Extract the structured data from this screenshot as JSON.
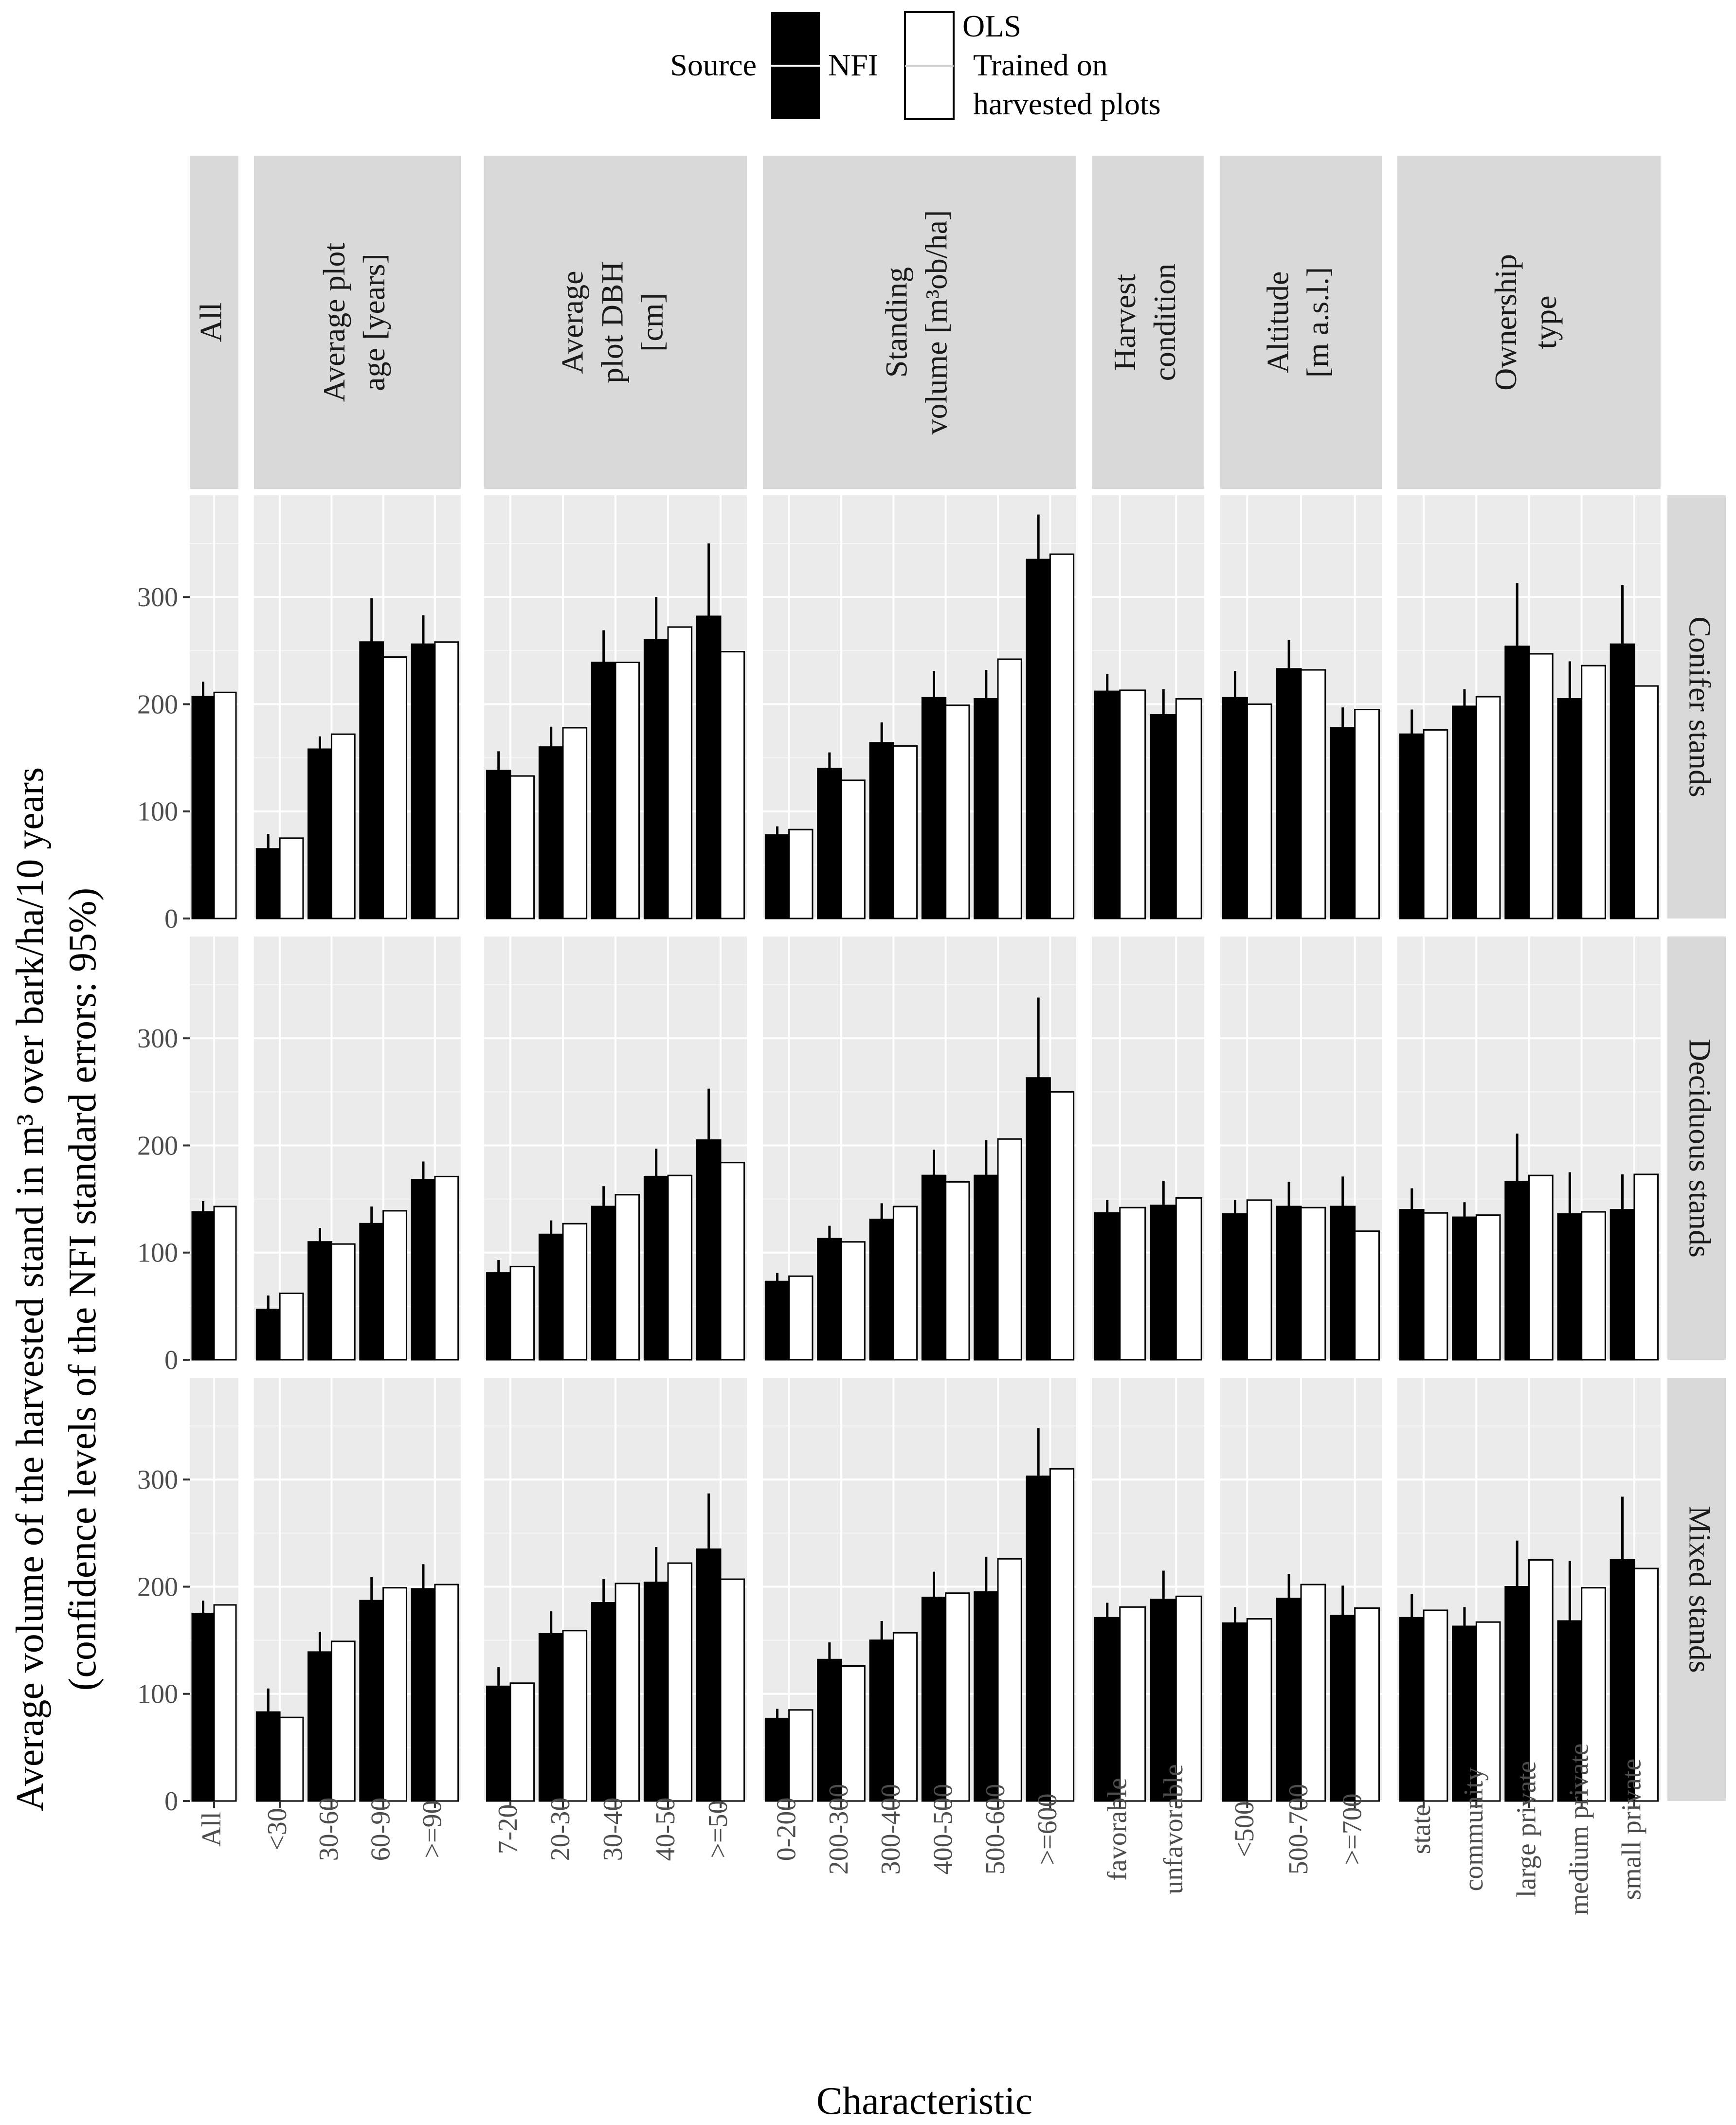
{
  "legend": {
    "title": "Source",
    "items": [
      {
        "key": "nfi",
        "label": "NFI"
      },
      {
        "key": "ols",
        "label_lines": [
          "OLS",
          "Trained on",
          "harvested plots"
        ]
      }
    ]
  },
  "chart_data": {
    "type": "bar",
    "facet_rows": [
      "Conifer stands",
      "Deciduous stands",
      "Mixed stands"
    ],
    "ylabel_lines": [
      "Average volume of the harvested stand in m³ over bark/ha/10 years",
      "(confidence levels of the NFI standard errors: 95%)"
    ],
    "xlabel": "Characteristic",
    "ylim": [
      0,
      395
    ],
    "yticks": [
      0,
      100,
      200,
      300
    ],
    "groups": [
      {
        "strip": [
          "All"
        ],
        "categories": [
          "All"
        ]
      },
      {
        "strip": [
          "Average plot",
          "age [years]"
        ],
        "categories": [
          "<30",
          "30-60",
          "60-90",
          ">=90"
        ]
      },
      {
        "strip": [
          "Average",
          "plot DBH",
          "[cm]"
        ],
        "categories": [
          "7-20",
          "20-30",
          "30-40",
          "40-50",
          ">=50"
        ]
      },
      {
        "strip": [
          "Standing",
          "volume [m³ob/ha]"
        ],
        "categories": [
          "0-200",
          "200-300",
          "300-400",
          "400-500",
          "500-600",
          ">=600"
        ]
      },
      {
        "strip": [
          "Harvest",
          "condition"
        ],
        "categories": [
          "favorable",
          "unfavorable"
        ]
      },
      {
        "strip": [
          "Altitude",
          "[m a.s.l.]"
        ],
        "categories": [
          "<500",
          "500-700",
          ">=700"
        ]
      },
      {
        "strip": [
          "Ownership",
          "type"
        ],
        "categories": [
          "state",
          "community",
          "large private",
          "medium private",
          "small private"
        ]
      }
    ],
    "series": [
      {
        "name": "NFI",
        "values": [
          [
            [
              207
            ],
            [
              65,
              158,
              258,
              256
            ],
            [
              138,
              160,
              239,
              260,
              282
            ],
            [
              78,
              140,
              164,
              206,
              205,
              335
            ],
            [
              212,
              190
            ],
            [
              206,
              233,
              178
            ],
            [
              172,
              198,
              254,
              205,
              256
            ]
          ],
          [
            [
              138
            ],
            [
              47,
              110,
              127,
              168
            ],
            [
              81,
              117,
              143,
              171,
              205
            ],
            [
              73,
              113,
              131,
              172,
              172,
              263
            ],
            [
              137,
              144
            ],
            [
              136,
              143,
              143
            ],
            [
              140,
              133,
              166,
              136,
              140
            ]
          ],
          [
            [
              175
            ],
            [
              83,
              139,
              187,
              198
            ],
            [
              107,
              156,
              185,
              204,
              235
            ],
            [
              77,
              132,
              150,
              190,
              195,
              303
            ],
            [
              171,
              188
            ],
            [
              166,
              189,
              173
            ],
            [
              171,
              163,
              200,
              168,
              225
            ]
          ]
        ]
      },
      {
        "name": "OLS Trained on harvested plots",
        "values": [
          [
            [
              211
            ],
            [
              75,
              172,
              244,
              258
            ],
            [
              133,
              178,
              239,
              272,
              249
            ],
            [
              83,
              129,
              161,
              199,
              242,
              340
            ],
            [
              213,
              205
            ],
            [
              200,
              232,
              195
            ],
            [
              176,
              207,
              247,
              236,
              217
            ]
          ],
          [
            [
              143
            ],
            [
              62,
              108,
              139,
              171
            ],
            [
              87,
              127,
              154,
              172,
              184
            ],
            [
              78,
              110,
              143,
              166,
              206,
              250
            ],
            [
              142,
              151
            ],
            [
              149,
              142,
              120
            ],
            [
              137,
              135,
              172,
              138,
              173
            ]
          ],
          [
            [
              183
            ],
            [
              78,
              149,
              199,
              202
            ],
            [
              110,
              159,
              203,
              222,
              207
            ],
            [
              85,
              126,
              157,
              194,
              226,
              310
            ],
            [
              181,
              191
            ],
            [
              170,
              202,
              180
            ],
            [
              178,
              167,
              225,
              199,
              217
            ]
          ]
        ]
      }
    ],
    "nfi_error_bars": [
      [
        [
          [
            193,
            221
          ]
        ],
        [
          [
            52,
            79
          ],
          [
            147,
            170
          ],
          [
            217,
            299
          ],
          [
            230,
            283
          ]
        ],
        [
          [
            120,
            156
          ],
          [
            142,
            179
          ],
          [
            210,
            269
          ],
          [
            220,
            300
          ],
          [
            215,
            350
          ]
        ],
        [
          [
            70,
            86
          ],
          [
            127,
            155
          ],
          [
            146,
            183
          ],
          [
            182,
            231
          ],
          [
            179,
            232
          ],
          [
            293,
            377
          ]
        ],
        [
          [
            196,
            228
          ],
          [
            167,
            214
          ]
        ],
        [
          [
            182,
            231
          ],
          [
            207,
            260
          ],
          [
            160,
            197
          ]
        ],
        [
          [
            149,
            195
          ],
          [
            183,
            214
          ],
          [
            196,
            313
          ],
          [
            169,
            240
          ],
          [
            201,
            311
          ]
        ]
      ],
      [
        [
          [
            128,
            148
          ]
        ],
        [
          [
            35,
            60
          ],
          [
            97,
            123
          ],
          [
            111,
            143
          ],
          [
            151,
            185
          ]
        ],
        [
          [
            69,
            93
          ],
          [
            104,
            130
          ],
          [
            124,
            162
          ],
          [
            146,
            197
          ],
          [
            157,
            253
          ]
        ],
        [
          [
            65,
            81
          ],
          [
            101,
            125
          ],
          [
            117,
            146
          ],
          [
            149,
            196
          ],
          [
            140,
            205
          ],
          [
            188,
            338
          ]
        ],
        [
          [
            125,
            149
          ],
          [
            121,
            167
          ]
        ],
        [
          [
            123,
            149
          ],
          [
            121,
            166
          ],
          [
            115,
            171
          ]
        ],
        [
          [
            120,
            160
          ],
          [
            120,
            147
          ],
          [
            123,
            211
          ],
          [
            98,
            175
          ],
          [
            108,
            173
          ]
        ]
      ],
      [
        [
          [
            163,
            187
          ]
        ],
        [
          [
            61,
            105
          ],
          [
            121,
            158
          ],
          [
            165,
            209
          ],
          [
            175,
            221
          ]
        ],
        [
          [
            89,
            125
          ],
          [
            136,
            177
          ],
          [
            164,
            207
          ],
          [
            172,
            237
          ],
          [
            184,
            287
          ]
        ],
        [
          [
            69,
            86
          ],
          [
            117,
            148
          ],
          [
            132,
            168
          ],
          [
            168,
            214
          ],
          [
            163,
            228
          ],
          [
            260,
            348
          ]
        ],
        [
          [
            157,
            185
          ],
          [
            162,
            215
          ]
        ],
        [
          [
            151,
            181
          ],
          [
            167,
            212
          ],
          [
            144,
            201
          ]
        ],
        [
          [
            149,
            193
          ],
          [
            146,
            181
          ],
          [
            156,
            243
          ],
          [
            111,
            224
          ],
          [
            166,
            284
          ]
        ]
      ]
    ]
  }
}
